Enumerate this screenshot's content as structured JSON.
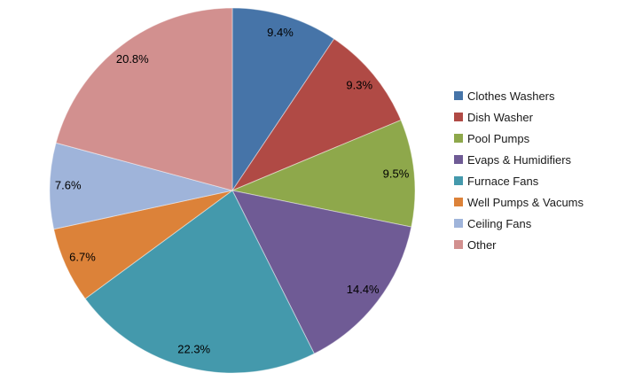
{
  "chart_data": {
    "type": "pie",
    "title": "",
    "categories": [
      "Clothes Washers",
      "Dish Washer",
      "Pool Pumps",
      "Evaps & Humidifiers",
      "Furnace Fans",
      "Well Pumps & Vacums",
      "Ceiling Fans",
      "Other"
    ],
    "values": [
      9.4,
      9.3,
      9.5,
      14.4,
      22.3,
      6.7,
      7.6,
      20.8
    ],
    "labels": [
      "9.4%",
      "9.3%",
      "9.5%",
      "14.4%",
      "22.3%",
      "6.7%",
      "7.6%",
      "20.8%"
    ],
    "colors": [
      "#4674A8",
      "#B04A45",
      "#8EA84B",
      "#6F5B95",
      "#4499AC",
      "#DC8239",
      "#9FB4DA",
      "#D2908F"
    ],
    "start_angle_deg": 0,
    "direction": "clockwise",
    "legend_position": "right",
    "label_radius_ratio": 0.9,
    "background": "#ffffff",
    "label_color": "#000000"
  }
}
